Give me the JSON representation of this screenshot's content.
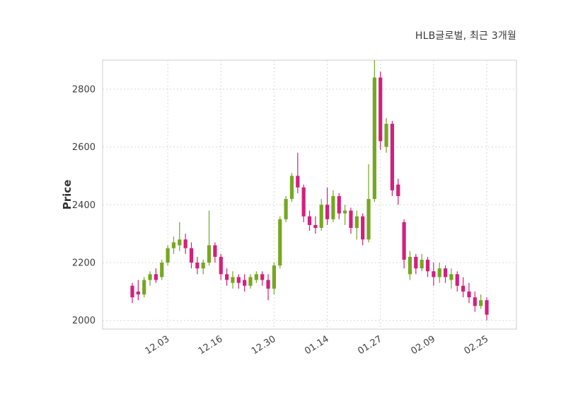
{
  "title": "HLB글로벌, 최근 3개월",
  "chart_data": {
    "type": "candlestick",
    "title": "HLB글로벌, 최근 3개월",
    "ylabel": "Price",
    "xlabel": "",
    "ylim": [
      1970,
      2900
    ],
    "yticks": [
      2000,
      2200,
      2400,
      2600,
      2800
    ],
    "xtick_labels": [
      "12.03",
      "12.16",
      "12.30",
      "01.14",
      "01.27",
      "02.09",
      "02.25"
    ],
    "xtick_indices": [
      6,
      15,
      24,
      33,
      42,
      51,
      60
    ],
    "grid": true,
    "legend": "none",
    "colors": {
      "up": "#76a721",
      "down": "#d2207d",
      "grid": "#d9d9d9",
      "border": "#cccccc",
      "text": "#3f3f3f",
      "plot_bg": "#ffffff"
    },
    "candles_format": "[open, high, low, close]",
    "candles": [
      [
        2120,
        2130,
        2060,
        2080
      ],
      [
        2100,
        2140,
        2070,
        2090
      ],
      [
        2090,
        2150,
        2080,
        2140
      ],
      [
        2140,
        2170,
        2120,
        2160
      ],
      [
        2160,
        2180,
        2130,
        2140
      ],
      [
        2150,
        2210,
        2140,
        2200
      ],
      [
        2200,
        2260,
        2190,
        2250
      ],
      [
        2250,
        2290,
        2230,
        2270
      ],
      [
        2260,
        2340,
        2240,
        2280
      ],
      [
        2280,
        2300,
        2230,
        2250
      ],
      [
        2250,
        2270,
        2180,
        2200
      ],
      [
        2200,
        2220,
        2160,
        2180
      ],
      [
        2180,
        2210,
        2160,
        2200
      ],
      [
        2200,
        2380,
        2190,
        2260
      ],
      [
        2260,
        2270,
        2200,
        2220
      ],
      [
        2220,
        2230,
        2140,
        2160
      ],
      [
        2160,
        2180,
        2120,
        2140
      ],
      [
        2130,
        2170,
        2110,
        2150
      ],
      [
        2150,
        2160,
        2110,
        2130
      ],
      [
        2140,
        2160,
        2100,
        2120
      ],
      [
        2120,
        2160,
        2110,
        2150
      ],
      [
        2140,
        2170,
        2130,
        2160
      ],
      [
        2160,
        2170,
        2120,
        2140
      ],
      [
        2140,
        2160,
        2070,
        2110
      ],
      [
        2110,
        2200,
        2090,
        2190
      ],
      [
        2190,
        2360,
        2180,
        2350
      ],
      [
        2350,
        2430,
        2340,
        2420
      ],
      [
        2420,
        2510,
        2410,
        2500
      ],
      [
        2500,
        2580,
        2440,
        2460
      ],
      [
        2460,
        2470,
        2340,
        2360
      ],
      [
        2360,
        2380,
        2310,
        2330
      ],
      [
        2330,
        2360,
        2300,
        2320
      ],
      [
        2320,
        2420,
        2310,
        2400
      ],
      [
        2400,
        2460,
        2330,
        2350
      ],
      [
        2350,
        2450,
        2340,
        2430
      ],
      [
        2430,
        2440,
        2350,
        2370
      ],
      [
        2370,
        2400,
        2330,
        2380
      ],
      [
        2380,
        2390,
        2300,
        2320
      ],
      [
        2320,
        2380,
        2280,
        2360
      ],
      [
        2360,
        2370,
        2260,
        2280
      ],
      [
        2280,
        2540,
        2270,
        2420
      ],
      [
        2420,
        2900,
        2410,
        2840
      ],
      [
        2840,
        2860,
        2590,
        2620
      ],
      [
        2600,
        2700,
        2580,
        2680
      ],
      [
        2680,
        2690,
        2430,
        2450
      ],
      [
        2470,
        2490,
        2400,
        2430
      ],
      [
        2340,
        2350,
        2180,
        2210
      ],
      [
        2160,
        2240,
        2140,
        2220
      ],
      [
        2220,
        2230,
        2160,
        2180
      ],
      [
        2180,
        2230,
        2170,
        2210
      ],
      [
        2210,
        2220,
        2150,
        2170
      ],
      [
        2170,
        2200,
        2120,
        2150
      ],
      [
        2150,
        2200,
        2130,
        2180
      ],
      [
        2180,
        2190,
        2130,
        2150
      ],
      [
        2140,
        2180,
        2110,
        2160
      ],
      [
        2160,
        2170,
        2100,
        2120
      ],
      [
        2120,
        2150,
        2080,
        2100
      ],
      [
        2100,
        2130,
        2060,
        2080
      ],
      [
        2080,
        2100,
        2030,
        2050
      ],
      [
        2050,
        2090,
        2040,
        2070
      ],
      [
        2070,
        2080,
        2000,
        2020
      ]
    ]
  }
}
